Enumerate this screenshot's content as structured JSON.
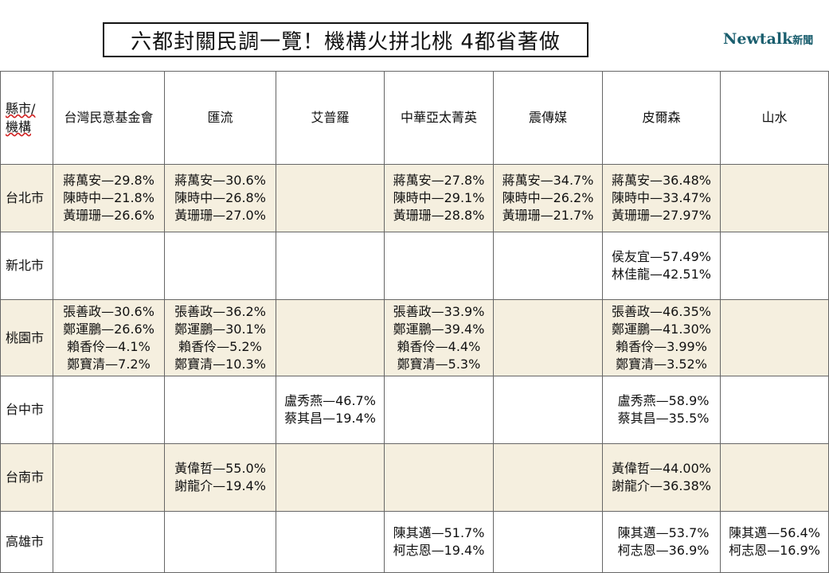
{
  "title": "六都封關民調一覽！機構火拼北桃 4都省著做",
  "brand": {
    "main": "Newtalk",
    "sub": "新聞"
  },
  "corner_label": {
    "line1": "縣市/",
    "line2": "機構"
  },
  "columns": [
    "台灣民意基金會",
    "匯流",
    "艾普羅",
    "中華亞太菁英",
    "震傳媒",
    "皮爾森",
    "山水"
  ],
  "rows": [
    {
      "city": "台北市",
      "cells": [
        [
          "蔣萬安—29.8%",
          "陳時中—21.8%",
          "黃珊珊—26.6%"
        ],
        [
          "蔣萬安—30.6%",
          "陳時中—26.8%",
          "黃珊珊—27.0%"
        ],
        [],
        [
          "蔣萬安—27.8%",
          "陳時中—29.1%",
          "黃珊珊—28.8%"
        ],
        [
          "蔣萬安—34.7%",
          "陳時中—26.2%",
          "黃珊珊—21.7%"
        ],
        [
          "蔣萬安—36.48%",
          "陳時中—33.47%",
          "黃珊珊—27.97%"
        ],
        []
      ]
    },
    {
      "city": "新北市",
      "cells": [
        [],
        [],
        [],
        [],
        [],
        [
          "侯友宜—57.49%",
          "林佳龍—42.51%"
        ],
        []
      ]
    },
    {
      "city": "桃園市",
      "cells": [
        [
          "張善政—30.6%",
          "鄭運鵬—26.6%",
          " 賴香伶—4.1%",
          " 鄭寶清—7.2%"
        ],
        [
          "張善政—36.2%",
          "鄭運鵬—30.1%",
          " 賴香伶—5.2%",
          "鄭寶清—10.3%"
        ],
        [],
        [
          "張善政—33.9%",
          "鄭運鵬—39.4%",
          " 賴香伶—4.4%",
          " 鄭寶清—5.3%"
        ],
        [],
        [
          "張善政—46.35%",
          "鄭運鵬—41.30%",
          " 賴香伶—3.99%",
          " 鄭寶清—3.52%"
        ],
        []
      ]
    },
    {
      "city": "台中市",
      "cells": [
        [],
        [],
        [
          "盧秀燕—46.7%",
          "蔡其昌—19.4%"
        ],
        [],
        [],
        [
          " 盧秀燕—58.9%",
          " 蔡其昌—35.5%"
        ],
        []
      ]
    },
    {
      "city": "台南市",
      "cells": [
        [],
        [
          "黃偉哲—55.0%",
          "謝龍介—19.4%"
        ],
        [],
        [],
        [],
        [
          "黃偉哲—44.00%",
          "謝龍介—36.38%"
        ],
        []
      ]
    },
    {
      "city": "高雄市",
      "cells": [
        [],
        [],
        [],
        [
          "陳其邁—51.7%",
          "柯志恩—19.4%"
        ],
        [],
        [
          " 陳其邁—53.7%",
          " 柯志恩—36.9%"
        ],
        [
          "陳其邁—56.4%",
          "柯志恩—16.9%"
        ]
      ]
    }
  ],
  "colors": {
    "shade": "#f5efdf",
    "border": "#666666",
    "brand": "#1a5e6e"
  }
}
